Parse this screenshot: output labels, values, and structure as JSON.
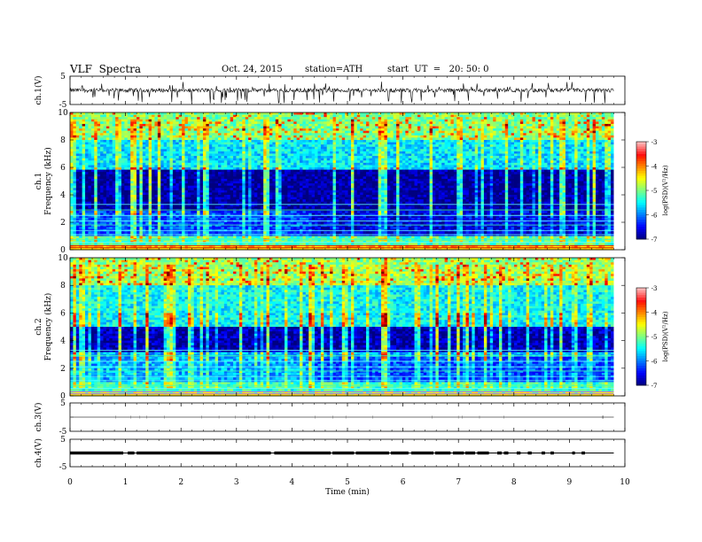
{
  "header": {
    "title": "VLF  Spectra",
    "date": "Oct. 24, 2015",
    "station": "station=ATH",
    "start": "start  UT  =   20: 50: 0"
  },
  "chart_data": [
    {
      "type": "line",
      "name": "ch1-waveform",
      "ylabel": "ch.1(V)",
      "ylim": [
        -5,
        5
      ],
      "yticks": [
        "5",
        "-5"
      ],
      "xlim": [
        0,
        10
      ],
      "x_extent": [
        0,
        9.8
      ],
      "baseline": 0.0,
      "amplitude": "noise with frequent spikes reaching near -5"
    },
    {
      "type": "heatmap",
      "name": "ch1-spectrogram",
      "ylabel": "ch.1\nFrequency  (kHz)",
      "ylim": [
        0,
        10
      ],
      "yticks": [
        "0",
        "2",
        "4",
        "6",
        "8",
        "10"
      ],
      "xlim": [
        0,
        10
      ],
      "x_extent": [
        0,
        9.8
      ],
      "colorbar": {
        "label": "log(PSD)(V²/Hz)",
        "range": [
          -7,
          -3
        ],
        "ticks": [
          "-3",
          "-4",
          "-5",
          "-6",
          "-7"
        ]
      },
      "bands": [
        {
          "f": [
            0,
            0.4
          ],
          "level": -4.2
        },
        {
          "f": [
            0.4,
            1.0
          ],
          "level": -5.2
        },
        {
          "f": [
            1.0,
            2.8
          ],
          "level": -6.2
        },
        {
          "f": [
            2.8,
            5.8
          ],
          "level": -6.9
        },
        {
          "f": [
            5.8,
            8.0
          ],
          "level": -5.6
        },
        {
          "f": [
            8.0,
            10.0
          ],
          "level": -5.0
        }
      ],
      "transition_time_min": 4.35
    },
    {
      "type": "heatmap",
      "name": "ch2-spectrogram",
      "ylabel": "ch.2\nFrequency  (kHz)",
      "ylim": [
        0,
        10
      ],
      "yticks": [
        "0",
        "2",
        "4",
        "6",
        "8",
        "10"
      ],
      "xlim": [
        0,
        10
      ],
      "x_extent": [
        0,
        9.8
      ],
      "colorbar": {
        "label": "log(PSD)(V²/Hz)",
        "range": [
          -7,
          -3
        ],
        "ticks": [
          "-3",
          "-4",
          "-5",
          "-6",
          "-7"
        ]
      },
      "bands": [
        {
          "f": [
            0,
            0.4
          ],
          "level": -4.8
        },
        {
          "f": [
            0.4,
            1.0
          ],
          "level": -5.3
        },
        {
          "f": [
            1.0,
            3.2
          ],
          "level": -5.8
        },
        {
          "f": [
            3.2,
            5.0
          ],
          "level": -6.8
        },
        {
          "f": [
            5.0,
            8.0
          ],
          "level": -5.5
        },
        {
          "f": [
            8.0,
            10.0
          ],
          "level": -4.9
        }
      ],
      "transition_time_min": 4.35
    },
    {
      "type": "line",
      "name": "ch3-waveform",
      "ylabel": "ch.3(V)",
      "ylim": [
        -5,
        5
      ],
      "yticks": [
        "5",
        "-5"
      ],
      "xlim": [
        0,
        10
      ],
      "x_extent": [
        0,
        9.8
      ],
      "baseline": 0.0
    },
    {
      "type": "line",
      "name": "ch4-waveform",
      "ylabel": "ch.4(V)",
      "ylim": [
        -5,
        5
      ],
      "yticks": [
        "5",
        "-5"
      ],
      "xlim": [
        0,
        10
      ],
      "x_extent": [
        0,
        9.8
      ],
      "baseline": 0.0,
      "segments_min": [
        [
          0,
          0.96
        ],
        [
          1.04,
          1.16
        ],
        [
          1.2,
          3.62
        ],
        [
          3.68,
          4.7
        ],
        [
          4.73,
          5.12
        ],
        [
          5.15,
          5.75
        ],
        [
          5.78,
          6.1
        ],
        [
          6.15,
          6.55
        ],
        [
          6.58,
          6.86
        ],
        [
          6.9,
          7.1
        ],
        [
          7.12,
          7.3
        ],
        [
          7.34,
          7.55
        ],
        [
          7.7,
          7.78
        ],
        [
          7.82,
          7.9
        ],
        [
          8.05,
          8.12
        ],
        [
          8.25,
          8.32
        ],
        [
          8.5,
          8.56
        ],
        [
          8.66,
          8.72
        ],
        [
          9.05,
          9.1
        ],
        [
          9.22,
          9.28
        ]
      ]
    }
  ],
  "xaxis": {
    "label": "Time  (min)",
    "ticks": [
      "0",
      "1",
      "2",
      "3",
      "4",
      "5",
      "6",
      "7",
      "8",
      "9",
      "10"
    ]
  }
}
